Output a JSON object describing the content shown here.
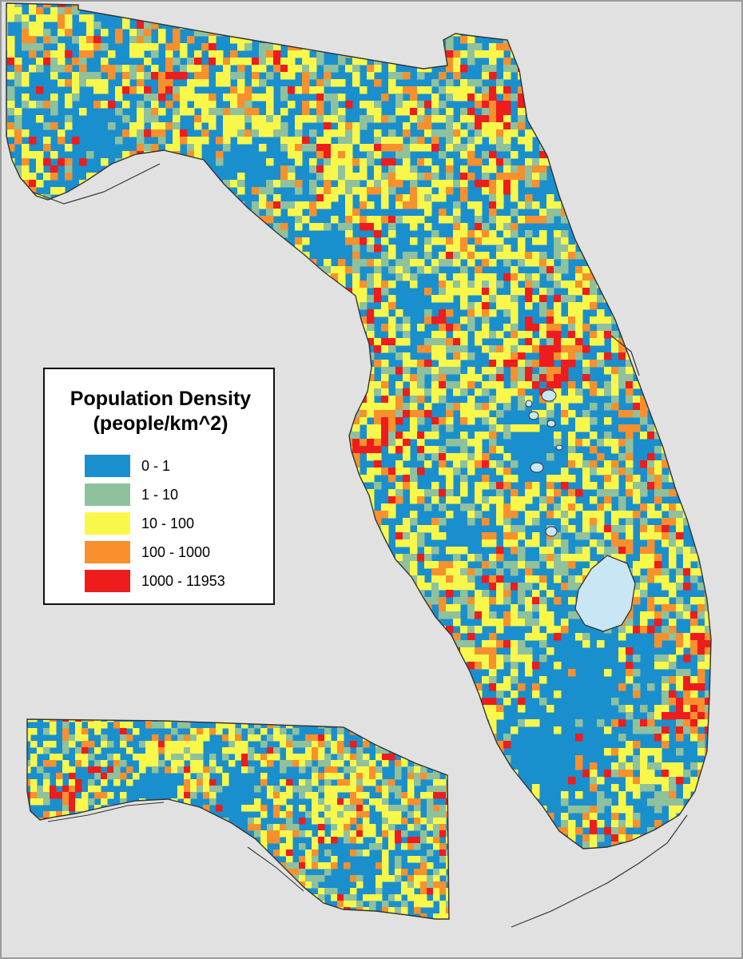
{
  "legend": {
    "title_line1": "Population Density",
    "title_line2": "(people/km^2)",
    "classes": [
      {
        "label": "0 - 1",
        "color": "#1a8fce"
      },
      {
        "label": "1 - 10",
        "color": "#8fc19d"
      },
      {
        "label": "10 - 100",
        "color": "#f9f84a"
      },
      {
        "label": "100 - 1000",
        "color": "#f7902d"
      },
      {
        "label": "1000 - 11953",
        "color": "#ee1c1c"
      }
    ]
  },
  "colors": {
    "background": "#e1e1e1",
    "lake": "#c8e6f4",
    "coastline": "#333333"
  }
}
